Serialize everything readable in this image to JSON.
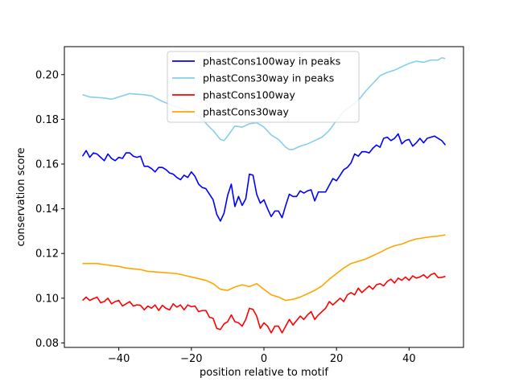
{
  "chart_data": {
    "type": "line",
    "title": "",
    "xlabel": "position relative to motif",
    "ylabel": "conservation score",
    "xlim": [
      -55,
      55
    ],
    "ylim": [
      0.078,
      0.2125
    ],
    "xticks": [
      -40,
      -20,
      0,
      20,
      40
    ],
    "xtick_labels": [
      "−40",
      "−20",
      "0",
      "20",
      "40"
    ],
    "yticks": [
      0.08,
      0.1,
      0.12,
      0.14,
      0.16,
      0.18,
      0.2
    ],
    "ytick_labels": [
      "0.08",
      "0.10",
      "0.12",
      "0.14",
      "0.16",
      "0.18",
      "0.20"
    ],
    "grid": false,
    "legend_position": "top-center",
    "series": [
      {
        "name": "phastCons100way in peaks",
        "color": "#0000ff",
        "x_start": -50,
        "x_end": 50,
        "points": [
          [
            -50,
            0.1635
          ],
          [
            -49,
            0.166
          ],
          [
            -48,
            0.163
          ],
          [
            -47,
            0.165
          ],
          [
            -46,
            0.1645
          ],
          [
            -45,
            0.163
          ],
          [
            -44,
            0.1615
          ],
          [
            -43,
            0.1645
          ],
          [
            -42,
            0.1625
          ],
          [
            -41,
            0.1615
          ],
          [
            -40,
            0.163
          ],
          [
            -39,
            0.1625
          ],
          [
            -38,
            0.165
          ],
          [
            -37,
            0.165
          ],
          [
            -36,
            0.1635
          ],
          [
            -35,
            0.163
          ],
          [
            -34,
            0.1635
          ],
          [
            -33,
            0.159
          ],
          [
            -32,
            0.159
          ],
          [
            -31,
            0.158
          ],
          [
            -30,
            0.1565
          ],
          [
            -29,
            0.1585
          ],
          [
            -28,
            0.1585
          ],
          [
            -27,
            0.1575
          ],
          [
            -26,
            0.156
          ],
          [
            -25,
            0.1555
          ],
          [
            -24,
            0.154
          ],
          [
            -23,
            0.153
          ],
          [
            -22,
            0.155
          ],
          [
            -21,
            0.154
          ],
          [
            -20,
            0.1565
          ],
          [
            -19,
            0.1545
          ],
          [
            -18,
            0.151
          ],
          [
            -17,
            0.1495
          ],
          [
            -16,
            0.149
          ],
          [
            -15,
            0.1465
          ],
          [
            -14,
            0.144
          ],
          [
            -13,
            0.1375
          ],
          [
            -12,
            0.1345
          ],
          [
            -11,
            0.138
          ],
          [
            -10,
            0.146
          ],
          [
            -9,
            0.151
          ],
          [
            -8,
            0.141
          ],
          [
            -7,
            0.1455
          ],
          [
            -6,
            0.1415
          ],
          [
            -5,
            0.1445
          ],
          [
            -4,
            0.1555
          ],
          [
            -3,
            0.155
          ],
          [
            -2,
            0.1465
          ],
          [
            -1,
            0.1425
          ],
          [
            0,
            0.144
          ],
          [
            1,
            0.14
          ],
          [
            2,
            0.1365
          ],
          [
            3,
            0.139
          ],
          [
            4,
            0.139
          ],
          [
            5,
            0.136
          ],
          [
            6,
            0.1415
          ],
          [
            7,
            0.1465
          ],
          [
            8,
            0.1455
          ],
          [
            9,
            0.1455
          ],
          [
            10,
            0.148
          ],
          [
            11,
            0.147
          ],
          [
            12,
            0.148
          ],
          [
            13,
            0.1485
          ],
          [
            14,
            0.1435
          ],
          [
            15,
            0.1475
          ],
          [
            16,
            0.1475
          ],
          [
            17,
            0.1475
          ],
          [
            18,
            0.1505
          ],
          [
            19,
            0.1535
          ],
          [
            20,
            0.1525
          ],
          [
            21,
            0.155
          ],
          [
            22,
            0.1575
          ],
          [
            23,
            0.1585
          ],
          [
            24,
            0.1605
          ],
          [
            25,
            0.1645
          ],
          [
            26,
            0.1635
          ],
          [
            27,
            0.1655
          ],
          [
            28,
            0.1655
          ],
          [
            29,
            0.165
          ],
          [
            30,
            0.167
          ],
          [
            31,
            0.1685
          ],
          [
            32,
            0.1675
          ],
          [
            33,
            0.1715
          ],
          [
            34,
            0.172
          ],
          [
            35,
            0.1705
          ],
          [
            36,
            0.1715
          ],
          [
            37,
            0.1735
          ],
          [
            38,
            0.169
          ],
          [
            39,
            0.1705
          ],
          [
            40,
            0.171
          ],
          [
            41,
            0.168
          ],
          [
            42,
            0.1695
          ],
          [
            43,
            0.1715
          ],
          [
            44,
            0.1695
          ],
          [
            45,
            0.1715
          ],
          [
            46,
            0.172
          ],
          [
            47,
            0.1725
          ],
          [
            48,
            0.1715
          ],
          [
            49,
            0.1705
          ],
          [
            50,
            0.1685
          ]
        ]
      },
      {
        "name": "phastCons30way in peaks",
        "color": "#87ceeb",
        "x_start": -50,
        "x_end": 50,
        "points": [
          [
            -50,
            0.191
          ],
          [
            -48,
            0.19
          ],
          [
            -44,
            0.1895
          ],
          [
            -42,
            0.189
          ],
          [
            -40,
            0.19
          ],
          [
            -37,
            0.1915
          ],
          [
            -33,
            0.191
          ],
          [
            -31,
            0.1905
          ],
          [
            -28,
            0.188
          ],
          [
            -25,
            0.186
          ],
          [
            -20,
            0.1835
          ],
          [
            -17,
            0.18
          ],
          [
            -15,
            0.1765
          ],
          [
            -14,
            0.175
          ],
          [
            -12,
            0.171
          ],
          [
            -11,
            0.1705
          ],
          [
            -10,
            0.1725
          ],
          [
            -8,
            0.177
          ],
          [
            -6,
            0.1765
          ],
          [
            -4,
            0.178
          ],
          [
            -2,
            0.1785
          ],
          [
            0,
            0.1765
          ],
          [
            2,
            0.173
          ],
          [
            4,
            0.171
          ],
          [
            6,
            0.1675
          ],
          [
            7,
            0.1665
          ],
          [
            8,
            0.1665
          ],
          [
            10,
            0.168
          ],
          [
            12,
            0.169
          ],
          [
            14,
            0.1705
          ],
          [
            16,
            0.172
          ],
          [
            18,
            0.175
          ],
          [
            20,
            0.1795
          ],
          [
            22,
            0.1835
          ],
          [
            24,
            0.186
          ],
          [
            26,
            0.1885
          ],
          [
            28,
            0.1925
          ],
          [
            30,
            0.196
          ],
          [
            32,
            0.1995
          ],
          [
            34,
            0.201
          ],
          [
            36,
            0.202
          ],
          [
            38,
            0.2035
          ],
          [
            40,
            0.205
          ],
          [
            42,
            0.206
          ],
          [
            44,
            0.2055
          ],
          [
            46,
            0.2065
          ],
          [
            48,
            0.2065
          ],
          [
            49,
            0.2075
          ],
          [
            50,
            0.2072
          ]
        ]
      },
      {
        "name": "phastCons100way",
        "color": "#ff0000",
        "x_start": -50,
        "x_end": 50,
        "points": [
          [
            -50,
            0.099
          ],
          [
            -49,
            0.1005
          ],
          [
            -48,
            0.099
          ],
          [
            -47,
            0.0998
          ],
          [
            -46,
            0.1005
          ],
          [
            -45,
            0.098
          ],
          [
            -44,
            0.0985
          ],
          [
            -43,
            0.1
          ],
          [
            -42,
            0.0975
          ],
          [
            -41,
            0.0985
          ],
          [
            -40,
            0.099
          ],
          [
            -39,
            0.0965
          ],
          [
            -38,
            0.0975
          ],
          [
            -37,
            0.0985
          ],
          [
            -36,
            0.0965
          ],
          [
            -35,
            0.097
          ],
          [
            -34,
            0.0968
          ],
          [
            -33,
            0.0948
          ],
          [
            -32,
            0.0965
          ],
          [
            -31,
            0.0955
          ],
          [
            -30,
            0.097
          ],
          [
            -29,
            0.0945
          ],
          [
            -28,
            0.0968
          ],
          [
            -27,
            0.0955
          ],
          [
            -26,
            0.0948
          ],
          [
            -25,
            0.0975
          ],
          [
            -24,
            0.096
          ],
          [
            -23,
            0.097
          ],
          [
            -22,
            0.0948
          ],
          [
            -21,
            0.097
          ],
          [
            -20,
            0.0962
          ],
          [
            -19,
            0.0965
          ],
          [
            -18,
            0.094
          ],
          [
            -17,
            0.0945
          ],
          [
            -16,
            0.0945
          ],
          [
            -15,
            0.0915
          ],
          [
            -14,
            0.091
          ],
          [
            -13,
            0.0865
          ],
          [
            -12,
            0.086
          ],
          [
            -11,
            0.0885
          ],
          [
            -10,
            0.0895
          ],
          [
            -9,
            0.0925
          ],
          [
            -8,
            0.0895
          ],
          [
            -7,
            0.089
          ],
          [
            -6,
            0.0875
          ],
          [
            -5,
            0.0905
          ],
          [
            -4,
            0.0955
          ],
          [
            -3,
            0.095
          ],
          [
            -2,
            0.092
          ],
          [
            -1,
            0.0865
          ],
          [
            0,
            0.089
          ],
          [
            1,
            0.0875
          ],
          [
            2,
            0.0845
          ],
          [
            3,
            0.0875
          ],
          [
            4,
            0.0875
          ],
          [
            5,
            0.0845
          ],
          [
            6,
            0.0875
          ],
          [
            7,
            0.0905
          ],
          [
            8,
            0.088
          ],
          [
            9,
            0.09
          ],
          [
            10,
            0.092
          ],
          [
            11,
            0.0905
          ],
          [
            12,
            0.0925
          ],
          [
            13,
            0.094
          ],
          [
            14,
            0.0905
          ],
          [
            15,
            0.0925
          ],
          [
            16,
            0.094
          ],
          [
            17,
            0.0955
          ],
          [
            18,
            0.0985
          ],
          [
            19,
            0.097
          ],
          [
            20,
            0.0985
          ],
          [
            21,
            0.1
          ],
          [
            22,
            0.0985
          ],
          [
            23,
            0.1015
          ],
          [
            24,
            0.1025
          ],
          [
            25,
            0.1015
          ],
          [
            26,
            0.1045
          ],
          [
            27,
            0.1025
          ],
          [
            28,
            0.104
          ],
          [
            29,
            0.1055
          ],
          [
            30,
            0.104
          ],
          [
            31,
            0.106
          ],
          [
            32,
            0.1065
          ],
          [
            33,
            0.1055
          ],
          [
            34,
            0.1075
          ],
          [
            35,
            0.1085
          ],
          [
            36,
            0.1068
          ],
          [
            37,
            0.109
          ],
          [
            38,
            0.108
          ],
          [
            39,
            0.1095
          ],
          [
            40,
            0.108
          ],
          [
            41,
            0.11
          ],
          [
            42,
            0.109
          ],
          [
            43,
            0.1095
          ],
          [
            44,
            0.1105
          ],
          [
            45,
            0.109
          ],
          [
            46,
            0.1105
          ],
          [
            47,
            0.1112
          ],
          [
            48,
            0.1092
          ],
          [
            49,
            0.1093
          ],
          [
            50,
            0.1098
          ]
        ]
      },
      {
        "name": "phastCons30way",
        "color": "#ffa500",
        "x_start": -50,
        "x_end": 50,
        "points": [
          [
            -50,
            0.1155
          ],
          [
            -46,
            0.1155
          ],
          [
            -44,
            0.115
          ],
          [
            -40,
            0.1142
          ],
          [
            -38,
            0.1135
          ],
          [
            -34,
            0.1128
          ],
          [
            -32,
            0.112
          ],
          [
            -28,
            0.1115
          ],
          [
            -24,
            0.111
          ],
          [
            -20,
            0.1095
          ],
          [
            -16,
            0.108
          ],
          [
            -14,
            0.1065
          ],
          [
            -12,
            0.104
          ],
          [
            -10,
            0.1035
          ],
          [
            -8,
            0.105
          ],
          [
            -6,
            0.106
          ],
          [
            -4,
            0.1052
          ],
          [
            -2,
            0.1065
          ],
          [
            0,
            0.104
          ],
          [
            2,
            0.1015
          ],
          [
            4,
            0.1005
          ],
          [
            6,
            0.099
          ],
          [
            8,
            0.0995
          ],
          [
            10,
            0.1005
          ],
          [
            12,
            0.102
          ],
          [
            14,
            0.1035
          ],
          [
            16,
            0.1055
          ],
          [
            18,
            0.1085
          ],
          [
            20,
            0.111
          ],
          [
            22,
            0.1135
          ],
          [
            24,
            0.1155
          ],
          [
            26,
            0.1165
          ],
          [
            28,
            0.1175
          ],
          [
            30,
            0.119
          ],
          [
            32,
            0.1205
          ],
          [
            34,
            0.1222
          ],
          [
            36,
            0.1235
          ],
          [
            38,
            0.1242
          ],
          [
            40,
            0.1255
          ],
          [
            42,
            0.1265
          ],
          [
            44,
            0.127
          ],
          [
            46,
            0.1275
          ],
          [
            48,
            0.1278
          ],
          [
            50,
            0.1283
          ]
        ]
      }
    ]
  }
}
